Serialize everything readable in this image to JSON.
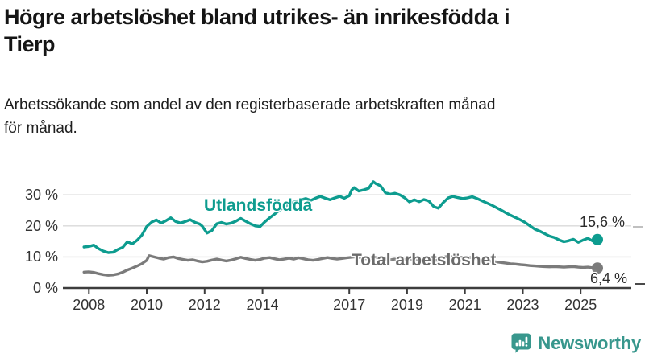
{
  "header": {
    "title": "Högre arbetslöshet bland utrikes- än inrikesfödda i\nTierp",
    "subtitle": "Arbetssökande som andel av den registerbaserade arbetskraften månad\nför månad."
  },
  "branding": {
    "name": "Newsworthy",
    "icon": "bar-chart-speech-bubble-icon",
    "color": "#38978d"
  },
  "colors": {
    "foreign_born_line": "#0d9c8f",
    "total_line": "#7b7b7b",
    "grid": "#dadada",
    "axis": "#3d3d3d",
    "tick_text": "#333333"
  },
  "chart_data": {
    "type": "line",
    "title": "Högre arbetslöshet bland utrikes- än inrikesfödda i Tierp",
    "subtitle": "Arbetssökande som andel av den registerbaserade arbetskraften månad för månad.",
    "xlabel": "",
    "ylabel": "",
    "x_unit": "decimal year (monthly data)",
    "y_unit": "%",
    "xlim": [
      2007.1,
      2026.75
    ],
    "ylim": [
      0,
      36
    ],
    "grid": true,
    "legend_position": "inline-labels",
    "yticks": [
      {
        "value": 30,
        "label": "30 %"
      },
      {
        "value": 20,
        "label": "20 %"
      },
      {
        "value": 10,
        "label": "10 %"
      },
      {
        "value": 0,
        "label": "0 %"
      }
    ],
    "xticks": [
      {
        "value": 2008,
        "label": "2008"
      },
      {
        "value": 2010,
        "label": "2010"
      },
      {
        "value": 2012,
        "label": "2012"
      },
      {
        "value": 2014,
        "label": "2014"
      },
      {
        "value": 2017,
        "label": "2017"
      },
      {
        "value": 2019,
        "label": "2019"
      },
      {
        "value": 2021,
        "label": "2021"
      },
      {
        "value": 2023,
        "label": "2023"
      },
      {
        "value": 2025,
        "label": "2025"
      }
    ],
    "series": [
      {
        "name": "Utlandsfödda",
        "color": "#0d9c8f",
        "end_label": "15,6 %",
        "end_value": 15.6,
        "points": [
          [
            2007.83,
            13.2
          ],
          [
            2008.0,
            13.4
          ],
          [
            2008.17,
            13.8
          ],
          [
            2008.33,
            12.7
          ],
          [
            2008.5,
            11.9
          ],
          [
            2008.67,
            11.4
          ],
          [
            2008.83,
            11.5
          ],
          [
            2009.0,
            12.4
          ],
          [
            2009.17,
            13.1
          ],
          [
            2009.33,
            14.9
          ],
          [
            2009.5,
            14.2
          ],
          [
            2009.67,
            15.4
          ],
          [
            2009.83,
            17.0
          ],
          [
            2010.0,
            19.8
          ],
          [
            2010.17,
            21.2
          ],
          [
            2010.33,
            21.9
          ],
          [
            2010.5,
            20.9
          ],
          [
            2010.67,
            21.7
          ],
          [
            2010.83,
            22.6
          ],
          [
            2011.0,
            21.4
          ],
          [
            2011.17,
            20.9
          ],
          [
            2011.33,
            21.4
          ],
          [
            2011.5,
            22.0
          ],
          [
            2011.67,
            21.1
          ],
          [
            2011.83,
            20.6
          ],
          [
            2011.92,
            19.9
          ],
          [
            2012.08,
            17.7
          ],
          [
            2012.25,
            18.5
          ],
          [
            2012.42,
            20.7
          ],
          [
            2012.58,
            21.1
          ],
          [
            2012.75,
            20.6
          ],
          [
            2012.92,
            20.9
          ],
          [
            2013.08,
            21.5
          ],
          [
            2013.25,
            22.4
          ],
          [
            2013.42,
            21.5
          ],
          [
            2013.58,
            20.7
          ],
          [
            2013.75,
            20.0
          ],
          [
            2013.92,
            19.8
          ],
          [
            2014.08,
            21.3
          ],
          [
            2014.25,
            22.6
          ],
          [
            2014.42,
            23.8
          ],
          [
            2014.58,
            25.0
          ],
          [
            2014.75,
            26.2
          ],
          [
            2014.92,
            26.9
          ],
          [
            2015.08,
            27.6
          ],
          [
            2015.25,
            28.2
          ],
          [
            2015.5,
            28.8
          ],
          [
            2015.67,
            28.2
          ],
          [
            2015.83,
            28.9
          ],
          [
            2016.0,
            29.5
          ],
          [
            2016.17,
            28.9
          ],
          [
            2016.33,
            28.4
          ],
          [
            2016.5,
            29.0
          ],
          [
            2016.67,
            29.5
          ],
          [
            2016.83,
            28.9
          ],
          [
            2017.0,
            29.7
          ],
          [
            2017.08,
            31.5
          ],
          [
            2017.17,
            32.3
          ],
          [
            2017.33,
            31.2
          ],
          [
            2017.5,
            31.6
          ],
          [
            2017.67,
            32.1
          ],
          [
            2017.83,
            34.2
          ],
          [
            2017.92,
            33.6
          ],
          [
            2018.08,
            32.9
          ],
          [
            2018.25,
            30.7
          ],
          [
            2018.42,
            30.2
          ],
          [
            2018.58,
            30.5
          ],
          [
            2018.75,
            30.0
          ],
          [
            2018.92,
            29.0
          ],
          [
            2019.08,
            27.7
          ],
          [
            2019.25,
            28.4
          ],
          [
            2019.42,
            27.8
          ],
          [
            2019.58,
            28.5
          ],
          [
            2019.75,
            28.0
          ],
          [
            2019.92,
            26.2
          ],
          [
            2020.08,
            25.7
          ],
          [
            2020.25,
            27.5
          ],
          [
            2020.42,
            29.0
          ],
          [
            2020.58,
            29.5
          ],
          [
            2020.75,
            29.1
          ],
          [
            2020.92,
            28.8
          ],
          [
            2021.08,
            29.0
          ],
          [
            2021.25,
            29.4
          ],
          [
            2021.42,
            28.8
          ],
          [
            2021.58,
            28.1
          ],
          [
            2021.75,
            27.4
          ],
          [
            2021.92,
            26.7
          ],
          [
            2022.08,
            25.9
          ],
          [
            2022.25,
            25.1
          ],
          [
            2022.42,
            24.2
          ],
          [
            2022.58,
            23.4
          ],
          [
            2022.75,
            22.7
          ],
          [
            2022.92,
            21.9
          ],
          [
            2023.08,
            21.1
          ],
          [
            2023.25,
            20.0
          ],
          [
            2023.42,
            18.9
          ],
          [
            2023.58,
            18.3
          ],
          [
            2023.75,
            17.5
          ],
          [
            2023.92,
            16.7
          ],
          [
            2024.08,
            16.3
          ],
          [
            2024.25,
            15.5
          ],
          [
            2024.42,
            14.9
          ],
          [
            2024.58,
            15.2
          ],
          [
            2024.75,
            15.7
          ],
          [
            2024.92,
            14.7
          ],
          [
            2025.08,
            15.4
          ],
          [
            2025.25,
            16.0
          ],
          [
            2025.42,
            15.1
          ],
          [
            2025.58,
            15.6
          ]
        ]
      },
      {
        "name": "Total arbetslöshet",
        "color": "#7b7b7b",
        "end_label": "6,4 %",
        "end_value": 6.4,
        "points": [
          [
            2007.83,
            5.1
          ],
          [
            2008.0,
            5.2
          ],
          [
            2008.17,
            5.0
          ],
          [
            2008.33,
            4.6
          ],
          [
            2008.5,
            4.3
          ],
          [
            2008.67,
            4.1
          ],
          [
            2008.83,
            4.2
          ],
          [
            2009.0,
            4.5
          ],
          [
            2009.17,
            5.1
          ],
          [
            2009.33,
            5.8
          ],
          [
            2009.5,
            6.4
          ],
          [
            2009.67,
            7.1
          ],
          [
            2009.83,
            7.8
          ],
          [
            2010.0,
            8.9
          ],
          [
            2010.08,
            10.4
          ],
          [
            2010.25,
            10.0
          ],
          [
            2010.42,
            9.6
          ],
          [
            2010.58,
            9.3
          ],
          [
            2010.75,
            9.8
          ],
          [
            2010.92,
            10.0
          ],
          [
            2011.08,
            9.5
          ],
          [
            2011.25,
            9.2
          ],
          [
            2011.42,
            8.9
          ],
          [
            2011.58,
            9.1
          ],
          [
            2011.75,
            8.7
          ],
          [
            2011.92,
            8.4
          ],
          [
            2012.08,
            8.6
          ],
          [
            2012.25,
            9.0
          ],
          [
            2012.42,
            9.3
          ],
          [
            2012.58,
            9.0
          ],
          [
            2012.75,
            8.7
          ],
          [
            2012.92,
            9.0
          ],
          [
            2013.08,
            9.4
          ],
          [
            2013.25,
            9.9
          ],
          [
            2013.42,
            9.5
          ],
          [
            2013.58,
            9.2
          ],
          [
            2013.75,
            8.9
          ],
          [
            2013.92,
            9.2
          ],
          [
            2014.08,
            9.6
          ],
          [
            2014.25,
            9.8
          ],
          [
            2014.42,
            9.4
          ],
          [
            2014.58,
            9.1
          ],
          [
            2014.75,
            9.3
          ],
          [
            2014.92,
            9.6
          ],
          [
            2015.08,
            9.3
          ],
          [
            2015.25,
            9.7
          ],
          [
            2015.42,
            9.4
          ],
          [
            2015.58,
            9.1
          ],
          [
            2015.75,
            8.9
          ],
          [
            2015.92,
            9.2
          ],
          [
            2016.08,
            9.5
          ],
          [
            2016.25,
            9.8
          ],
          [
            2016.42,
            9.5
          ],
          [
            2016.58,
            9.3
          ],
          [
            2016.75,
            9.5
          ],
          [
            2016.92,
            9.7
          ],
          [
            2017.08,
            9.9
          ],
          [
            2017.25,
            10.0
          ],
          [
            2017.42,
            9.7
          ],
          [
            2017.58,
            9.4
          ],
          [
            2017.75,
            9.6
          ],
          [
            2017.92,
            9.8
          ],
          [
            2018.08,
            9.6
          ],
          [
            2018.25,
            9.3
          ],
          [
            2018.42,
            9.1
          ],
          [
            2018.58,
            9.3
          ],
          [
            2018.75,
            9.0
          ],
          [
            2018.92,
            9.2
          ],
          [
            2019.08,
            9.4
          ],
          [
            2019.25,
            9.1
          ],
          [
            2019.42,
            8.9
          ],
          [
            2019.58,
            8.7
          ],
          [
            2019.75,
            8.9
          ],
          [
            2019.92,
            8.8
          ],
          [
            2020.08,
            9.0
          ],
          [
            2020.25,
            9.9
          ],
          [
            2020.42,
            10.2
          ],
          [
            2020.58,
            10.0
          ],
          [
            2020.75,
            9.8
          ],
          [
            2020.92,
            9.9
          ],
          [
            2021.08,
            10.0
          ],
          [
            2021.25,
            9.7
          ],
          [
            2021.42,
            9.4
          ],
          [
            2021.58,
            9.1
          ],
          [
            2021.75,
            8.8
          ],
          [
            2021.92,
            8.6
          ],
          [
            2022.08,
            8.4
          ],
          [
            2022.25,
            8.2
          ],
          [
            2022.42,
            8.0
          ],
          [
            2022.58,
            7.8
          ],
          [
            2022.75,
            7.7
          ],
          [
            2022.92,
            7.5
          ],
          [
            2023.08,
            7.4
          ],
          [
            2023.25,
            7.2
          ],
          [
            2023.42,
            7.1
          ],
          [
            2023.58,
            7.0
          ],
          [
            2023.75,
            6.9
          ],
          [
            2023.92,
            6.8
          ],
          [
            2024.08,
            6.9
          ],
          [
            2024.25,
            6.8
          ],
          [
            2024.42,
            6.7
          ],
          [
            2024.58,
            6.8
          ],
          [
            2024.75,
            6.9
          ],
          [
            2024.92,
            6.7
          ],
          [
            2025.08,
            6.6
          ],
          [
            2025.25,
            6.7
          ],
          [
            2025.42,
            6.5
          ],
          [
            2025.58,
            6.4
          ]
        ]
      }
    ]
  }
}
